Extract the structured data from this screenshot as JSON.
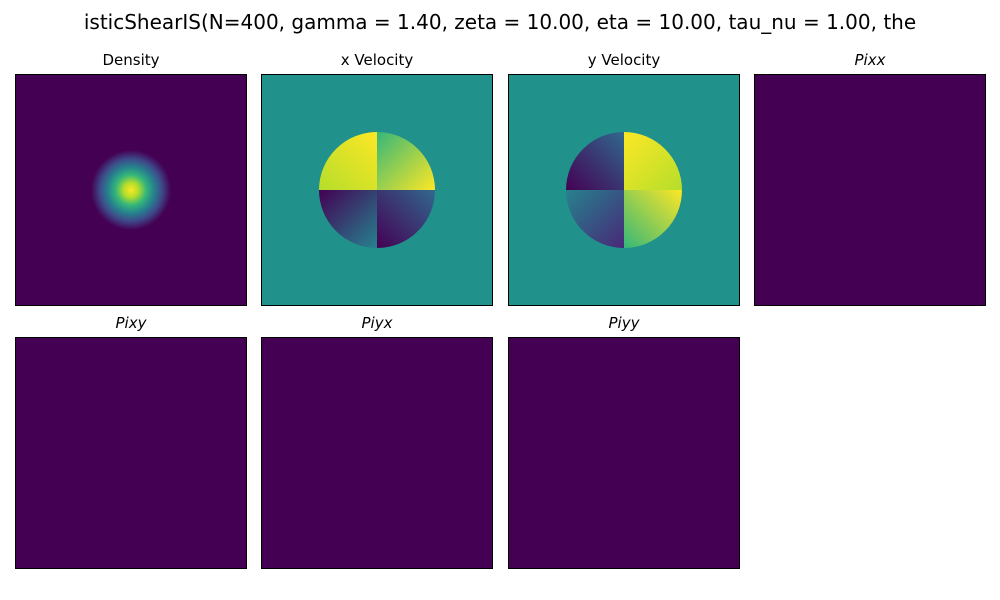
{
  "suptitle": "isticShearIS(N=400, gamma = 1.40, zeta = 10.00, eta = 10.00, tau_nu = 1.00, the",
  "colormap": "viridis",
  "colors": {
    "background": "#ffffff",
    "axes_edge": "#000000",
    "field_low": "#440154",
    "field_mid": "#21918c",
    "field_high": "#fde725"
  },
  "chart_data": [
    {
      "type": "heatmap",
      "title": "Density",
      "title_italic": false,
      "field": "gaussian-blob",
      "xlabel": "",
      "ylabel": "",
      "ticks": false
    },
    {
      "type": "heatmap",
      "title": "x Velocity",
      "title_italic": false,
      "field": "vortex-x",
      "xlabel": "",
      "ylabel": "",
      "ticks": false
    },
    {
      "type": "heatmap",
      "title": "y Velocity",
      "title_italic": false,
      "field": "vortex-y",
      "xlabel": "",
      "ylabel": "",
      "ticks": false
    },
    {
      "type": "heatmap",
      "title": "Pixx",
      "title_italic": true,
      "field": "uniform",
      "xlabel": "",
      "ylabel": "",
      "ticks": false
    },
    {
      "type": "heatmap",
      "title": "Pixy",
      "title_italic": true,
      "field": "uniform",
      "xlabel": "",
      "ylabel": "",
      "ticks": false
    },
    {
      "type": "heatmap",
      "title": "Piyx",
      "title_italic": true,
      "field": "uniform",
      "xlabel": "",
      "ylabel": "",
      "ticks": false
    },
    {
      "type": "heatmap",
      "title": "Piyy",
      "title_italic": true,
      "field": "uniform",
      "xlabel": "",
      "ylabel": "",
      "ticks": false
    }
  ]
}
